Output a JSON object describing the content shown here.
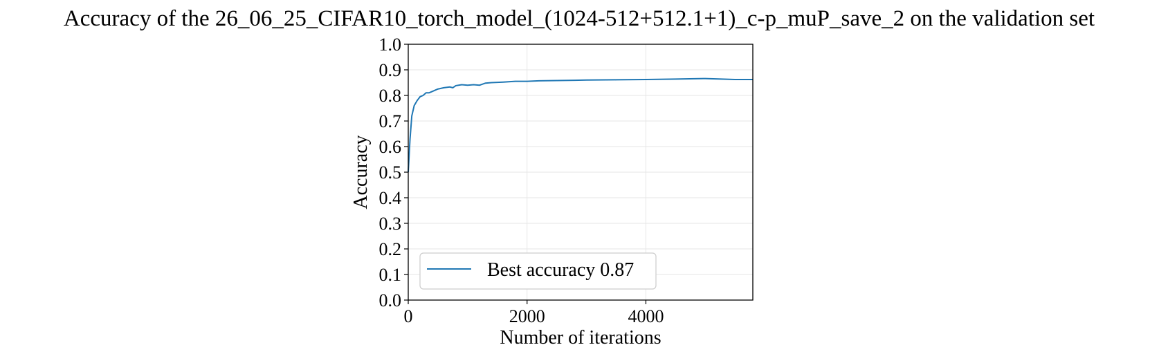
{
  "chart_data": {
    "type": "line",
    "title": "Accuracy of the 26_06_25_CIFAR10_torch_model_(1024-512+512.1+1)_c-p_muP_save_2 on the validation set",
    "xlabel": "Number of iterations",
    "ylabel": "Accuracy",
    "xlim": [
      0,
      5800
    ],
    "ylim": [
      0.0,
      1.0
    ],
    "x_ticks": [
      0,
      2000,
      4000
    ],
    "x_tick_labels": [
      "0",
      "2000",
      "4000"
    ],
    "y_ticks": [
      0.0,
      0.1,
      0.2,
      0.3,
      0.4,
      0.5,
      0.6,
      0.7,
      0.8,
      0.9,
      1.0
    ],
    "y_tick_labels": [
      "0.0",
      "0.1",
      "0.2",
      "0.3",
      "0.4",
      "0.5",
      "0.6",
      "0.7",
      "0.8",
      "0.9",
      "1.0"
    ],
    "grid": true,
    "legend_position": "lower-left",
    "series": [
      {
        "name": "Best accuracy 0.87",
        "color": "#1f77b4",
        "x": [
          0,
          30,
          60,
          100,
          150,
          200,
          250,
          300,
          350,
          400,
          450,
          500,
          600,
          700,
          750,
          800,
          900,
          1000,
          1100,
          1200,
          1300,
          1400,
          1600,
          1800,
          2000,
          2200,
          2500,
          2800,
          3000,
          3500,
          4000,
          4500,
          5000,
          5500,
          5800
        ],
        "values": [
          0.5,
          0.63,
          0.72,
          0.76,
          0.78,
          0.795,
          0.8,
          0.81,
          0.81,
          0.815,
          0.82,
          0.825,
          0.83,
          0.833,
          0.83,
          0.838,
          0.842,
          0.84,
          0.842,
          0.84,
          0.848,
          0.85,
          0.852,
          0.855,
          0.855,
          0.857,
          0.858,
          0.859,
          0.86,
          0.861,
          0.862,
          0.864,
          0.866,
          0.862,
          0.862
        ]
      }
    ]
  }
}
